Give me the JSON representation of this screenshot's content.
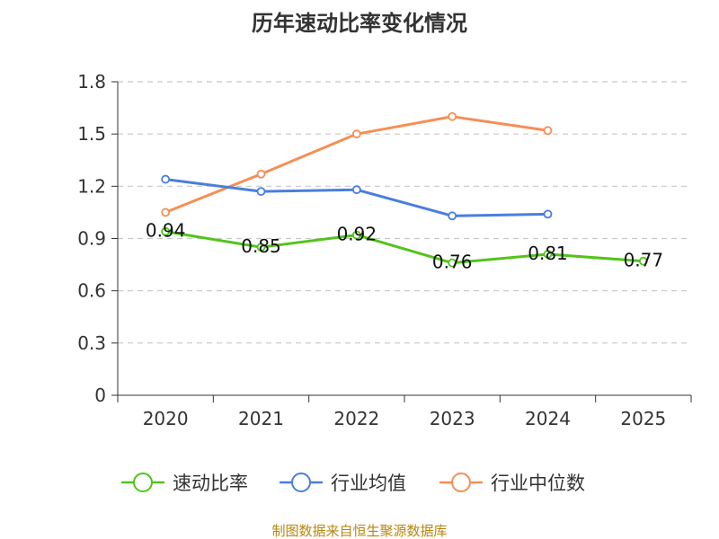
{
  "chart_data": {
    "type": "line",
    "title": "历年速动比率变化情况",
    "categories": [
      "2020",
      "2021",
      "2022",
      "2023",
      "2024",
      "2025"
    ],
    "ylim": [
      0,
      1.8
    ],
    "yticks": [
      "0",
      "0.3",
      "0.6",
      "0.9",
      "1.2",
      "1.5",
      "1.8"
    ],
    "grid": true,
    "legend_position": "bottom",
    "series": [
      {
        "name": "速动比率",
        "color": "#52c41a",
        "values": [
          0.94,
          0.85,
          0.92,
          0.76,
          0.81,
          0.77
        ],
        "labels": [
          "0.94",
          "0.85",
          "0.92",
          "0.76",
          "0.81",
          "0.77"
        ]
      },
      {
        "name": "行业均值",
        "color": "#4a7ede",
        "values": [
          1.24,
          1.17,
          1.18,
          1.03,
          1.04,
          null
        ]
      },
      {
        "name": "行业中位数",
        "color": "#f58f55",
        "values": [
          1.05,
          1.27,
          1.5,
          1.6,
          1.52,
          null
        ]
      }
    ],
    "source": "制图数据来自恒生聚源数据库"
  }
}
